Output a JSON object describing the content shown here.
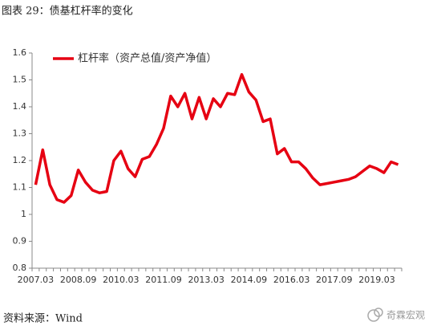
{
  "chart_data": {
    "type": "line",
    "title": "图表 29：债基杠杆率的变化",
    "source": "资料来源：Wind",
    "watermark": "奇霖宏观",
    "categories": [
      "2007.03",
      null,
      null,
      null,
      null,
      null,
      "2008.09",
      null,
      null,
      null,
      null,
      null,
      "2010.03",
      null,
      null,
      null,
      null,
      null,
      "2011.09",
      null,
      null,
      null,
      null,
      null,
      "2013.03",
      null,
      null,
      null,
      null,
      null,
      "2014.09",
      null,
      null,
      null,
      null,
      null,
      "2016.03",
      null,
      null,
      null,
      null,
      null,
      "2017.09",
      null,
      null,
      null,
      null,
      null,
      "2019.03",
      null,
      null,
      null
    ],
    "series": [
      {
        "name": "杠杆率（资产总值/资产净值）",
        "color": "#e60012",
        "values": [
          1.11,
          1.24,
          1.11,
          1.055,
          1.045,
          1.07,
          1.165,
          1.12,
          1.09,
          1.08,
          1.085,
          1.2,
          1.235,
          1.17,
          1.14,
          1.205,
          1.215,
          1.26,
          1.32,
          1.44,
          1.4,
          1.45,
          1.355,
          1.435,
          1.355,
          1.43,
          1.4,
          1.45,
          1.445,
          1.52,
          1.455,
          1.425,
          1.345,
          1.355,
          1.225,
          1.245,
          1.195,
          1.195,
          1.17,
          1.135,
          1.11,
          1.115,
          1.12,
          1.125,
          1.13,
          1.14,
          1.16,
          1.18,
          1.17,
          1.155,
          1.195,
          1.185
        ]
      }
    ],
    "ylim": [
      0.8,
      1.6
    ],
    "yticks": [
      0.8,
      0.9,
      1,
      1.1,
      1.2,
      1.3,
      1.4,
      1.5,
      1.6
    ],
    "grid": false,
    "legend": "top-left"
  }
}
